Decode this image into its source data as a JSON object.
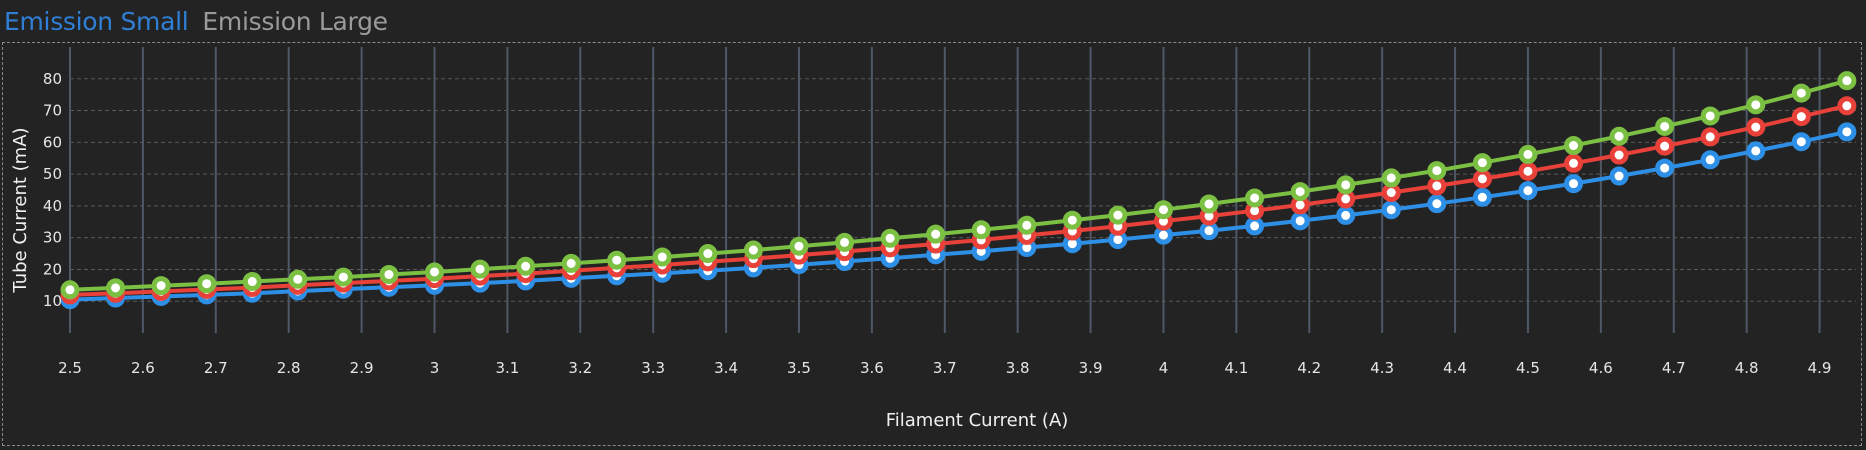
{
  "tabs": [
    {
      "label": "Emission Small",
      "active": true,
      "color": "#2f7fd6"
    },
    {
      "label": "Emission Large",
      "active": false,
      "color": "#9a9a9a"
    }
  ],
  "colors": {
    "background": "#232323",
    "grid_major": "#4e5866",
    "grid_minor": "#5a5a5a",
    "marker_fill": "#ffffff"
  },
  "chart_data": {
    "type": "line",
    "title": "",
    "xlabel": "Filament Current (A)",
    "ylabel": "Tube Current (mA)",
    "xlim": [
      2.5,
      4.95
    ],
    "ylim": [
      0,
      90
    ],
    "xticks": [
      2.5,
      2.6,
      2.7,
      2.8,
      2.9,
      3,
      3.1,
      3.2,
      3.3,
      3.4,
      3.5,
      3.6,
      3.7,
      3.8,
      3.9,
      4,
      4.1,
      4.2,
      4.3,
      4.4,
      4.5,
      4.6,
      4.7,
      4.8,
      4.9
    ],
    "xtick_labels": [
      "2.5",
      "2.6",
      "2.7",
      "2.8",
      "2.9",
      "3",
      "3.1",
      "3.2",
      "3.3",
      "3.4",
      "3.5",
      "3.6",
      "3.7",
      "3.8",
      "3.9",
      "4",
      "4.1",
      "4.2",
      "4.3",
      "4.4",
      "4.5",
      "4.6",
      "4.7",
      "4.8",
      "4.9"
    ],
    "yticks": [
      10,
      20,
      30,
      40,
      50,
      60,
      70,
      80
    ],
    "ytick_labels": [
      "10",
      "20",
      "30",
      "40",
      "50",
      "60",
      "70",
      "80"
    ],
    "grid": true,
    "legend": "none",
    "x": [
      2.5,
      2.5625,
      2.625,
      2.6875,
      2.75,
      2.8125,
      2.875,
      2.9375,
      3,
      3.0625,
      3.125,
      3.1875,
      3.25,
      3.3125,
      3.375,
      3.4375,
      3.5,
      3.5625,
      3.625,
      3.6875,
      3.75,
      3.8125,
      3.875,
      3.9375,
      4,
      4.0625,
      4.125,
      4.1875,
      4.25,
      4.3125,
      4.375,
      4.4375,
      4.5,
      4.5625,
      4.625,
      4.6875,
      4.75,
      4.8125,
      4.875,
      4.9375
    ],
    "series": [
      {
        "color": "#2e8fe6",
        "values": [
          10.5,
          11.0,
          11.5,
          12.0,
          12.5,
          13.2,
          13.8,
          14.4,
          15.0,
          15.7,
          16.4,
          17.2,
          18.0,
          18.8,
          19.6,
          20.5,
          21.5,
          22.5,
          23.5,
          24.6,
          25.7,
          26.9,
          28.1,
          29.4,
          30.8,
          32.2,
          33.7,
          35.3,
          37.0,
          38.8,
          40.7,
          42.7,
          44.8,
          47.0,
          49.4,
          51.9,
          54.5,
          57.3,
          60.2,
          63.3
        ]
      },
      {
        "color": "#e8413a",
        "values": [
          12.0,
          12.5,
          13.1,
          13.7,
          14.3,
          15.0,
          15.7,
          16.4,
          17.1,
          17.9,
          18.7,
          19.6,
          20.5,
          21.4,
          22.4,
          23.4,
          24.5,
          25.6,
          26.8,
          28.0,
          29.3,
          30.7,
          32.1,
          33.6,
          35.2,
          36.8,
          38.5,
          40.3,
          42.2,
          44.2,
          46.3,
          48.5,
          50.9,
          53.4,
          56.0,
          58.8,
          61.7,
          64.8,
          68.1,
          71.5
        ]
      },
      {
        "color": "#7bc043",
        "values": [
          13.6,
          14.2,
          14.9,
          15.5,
          16.2,
          16.9,
          17.6,
          18.4,
          19.2,
          20.1,
          21.0,
          21.9,
          22.9,
          23.9,
          25.0,
          26.1,
          27.3,
          28.5,
          29.8,
          31.1,
          32.5,
          33.9,
          35.5,
          37.1,
          38.8,
          40.6,
          42.5,
          44.5,
          46.6,
          48.8,
          51.1,
          53.6,
          56.2,
          59.0,
          61.9,
          65.0,
          68.3,
          71.8,
          75.5,
          79.4
        ]
      }
    ]
  }
}
